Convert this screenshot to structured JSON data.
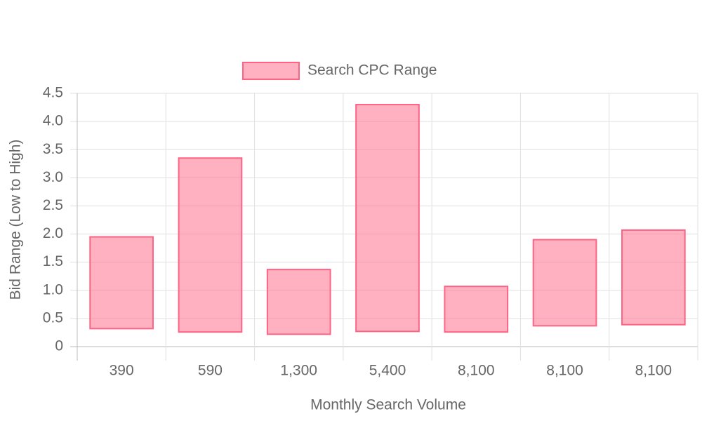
{
  "chart_data": {
    "type": "floating-bar",
    "x_label": "Monthly Search Volume",
    "y_label": "Bid Range (Low to High)",
    "categories": [
      "390",
      "590",
      "1,300",
      "5,400",
      "8,100",
      "8,100",
      "8,100"
    ],
    "series": [
      {
        "name": "Search CPC Range",
        "color": "#ff6384",
        "values": [
          [
            0.32,
            1.95
          ],
          [
            0.26,
            3.35
          ],
          [
            0.22,
            1.37
          ],
          [
            0.27,
            4.3
          ],
          [
            0.26,
            1.07
          ],
          [
            0.37,
            1.9
          ],
          [
            0.39,
            2.07
          ]
        ]
      }
    ],
    "ylim": [
      0,
      4.5
    ],
    "yticks": [
      0,
      0.5,
      {
        "value": 1,
        "label": "1.0"
      },
      1.5,
      {
        "value": 2,
        "label": "2.0"
      },
      2.5,
      {
        "value": 3,
        "label": "3.0"
      },
      3.5,
      {
        "value": 4,
        "label": "4.0"
      },
      4.5
    ],
    "grid": true,
    "legend": "top"
  }
}
